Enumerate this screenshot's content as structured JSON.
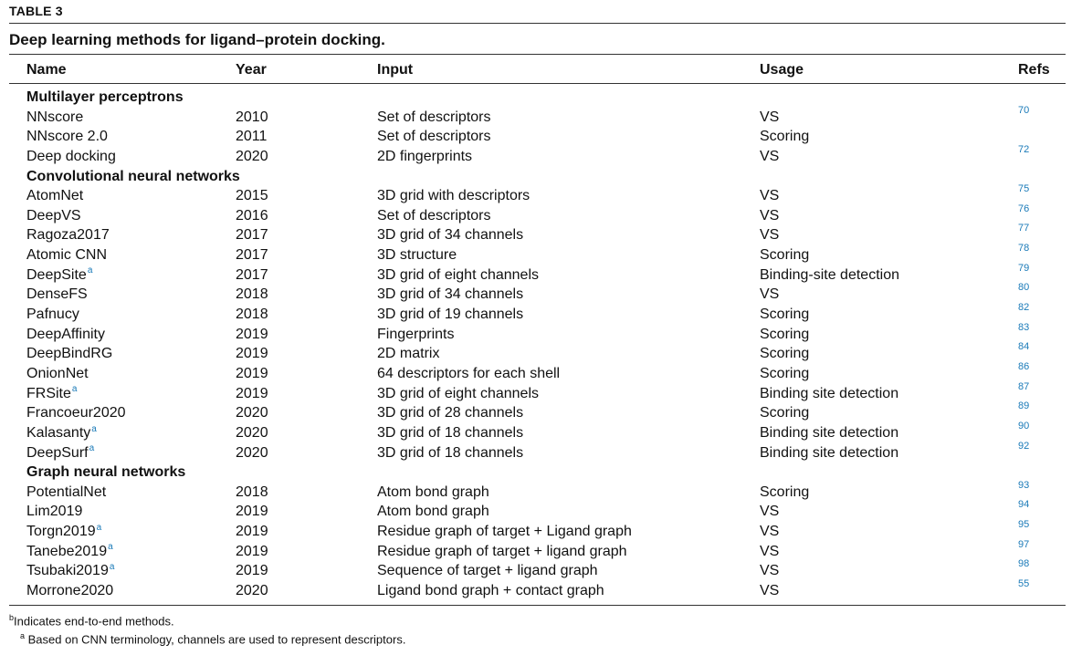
{
  "table_label": "TABLE 3",
  "caption": "Deep learning methods for ligand–protein docking.",
  "headers": {
    "name": "Name",
    "year": "Year",
    "input": "Input",
    "usage": "Usage",
    "refs": "Refs"
  },
  "rows": [
    {
      "group": "Multilayer perceptrons"
    },
    {
      "name": "NNscore",
      "fn": "",
      "year": "2010",
      "input": "Set of descriptors",
      "usage": "VS",
      "ref": "70"
    },
    {
      "name": "NNscore 2.0",
      "fn": "",
      "year": "2011",
      "input": "Set of descriptors",
      "usage": "Scoring",
      "ref": ""
    },
    {
      "name": "Deep docking",
      "fn": "",
      "year": "2020",
      "input": "2D fingerprints",
      "usage": "VS",
      "ref": "72"
    },
    {
      "group": "Convolutional neural networks"
    },
    {
      "name": "AtomNet",
      "fn": "",
      "year": "2015",
      "input": "3D grid with descriptors",
      "usage": "VS",
      "ref": "75"
    },
    {
      "name": "DeepVS",
      "fn": "",
      "year": "2016",
      "input": "Set of descriptors",
      "usage": "VS",
      "ref": "76"
    },
    {
      "name": "Ragoza2017",
      "fn": "",
      "year": "2017",
      "input": "3D grid of 34 channels",
      "usage": "VS",
      "ref": "77"
    },
    {
      "name": "Atomic CNN",
      "fn": "",
      "year": "2017",
      "input": "3D structure",
      "usage": "Scoring",
      "ref": "78"
    },
    {
      "name": "DeepSite",
      "fn": "a",
      "year": "2017",
      "input": "3D grid of eight channels",
      "usage": "Binding-site detection",
      "ref": "79"
    },
    {
      "name": "DenseFS",
      "fn": "",
      "year": "2018",
      "input": "3D grid of 34 channels",
      "usage": "VS",
      "ref": "80"
    },
    {
      "name": "Pafnucy",
      "fn": "",
      "year": "2018",
      "input": "3D grid of 19 channels",
      "usage": "Scoring",
      "ref": "82"
    },
    {
      "name": "DeepAffinity",
      "fn": "",
      "year": "2019",
      "input": "Fingerprints",
      "usage": "Scoring",
      "ref": "83"
    },
    {
      "name": "DeepBindRG",
      "fn": "",
      "year": "2019",
      "input": "2D matrix",
      "usage": "Scoring",
      "ref": "84"
    },
    {
      "name": "OnionNet",
      "fn": "",
      "year": "2019",
      "input": "64 descriptors for each shell",
      "usage": "Scoring",
      "ref": "86"
    },
    {
      "name": "FRSite",
      "fn": "a",
      "year": "2019",
      "input": "3D grid of eight channels",
      "usage": "Binding site detection",
      "ref": "87"
    },
    {
      "name": "Francoeur2020",
      "fn": "",
      "year": "2020",
      "input": "3D grid of 28 channels",
      "usage": "Scoring",
      "ref": "89"
    },
    {
      "name": "Kalasanty",
      "fn": "a",
      "year": "2020",
      "input": "3D grid of 18 channels",
      "usage": "Binding site detection",
      "ref": "90"
    },
    {
      "name": "DeepSurf",
      "fn": "a",
      "year": "2020",
      "input": "3D grid of 18 channels",
      "usage": "Binding site detection",
      "ref": "92"
    },
    {
      "group": "Graph neural networks"
    },
    {
      "name": "PotentialNet",
      "fn": "",
      "year": "2018",
      "input": "Atom bond graph",
      "usage": "Scoring",
      "ref": "93"
    },
    {
      "name": "Lim2019",
      "fn": "",
      "year": "2019",
      "input": "Atom bond graph",
      "usage": "VS",
      "ref": "94"
    },
    {
      "name": "Torgn2019",
      "fn": "a",
      "year": "2019",
      "input": "Residue graph of target + Ligand graph",
      "usage": "VS",
      "ref": "95"
    },
    {
      "name": "Tanebe2019",
      "fn": "a",
      "year": "2019",
      "input": "Residue graph of target + ligand graph",
      "usage": "VS",
      "ref": "97"
    },
    {
      "name": "Tsubaki2019",
      "fn": "a",
      "year": "2019",
      "input": "Sequence of target + ligand graph",
      "usage": "VS",
      "ref": "98"
    },
    {
      "name": "Morrone2020",
      "fn": "",
      "year": "2020",
      "input": "Ligand bond graph + contact graph",
      "usage": "VS",
      "ref": "55"
    }
  ],
  "footnotes": [
    {
      "mark": "b",
      "text": "Indicates end-to-end methods."
    },
    {
      "mark": "a",
      "text": " Based on CNN terminology, channels are used to represent descriptors."
    }
  ]
}
